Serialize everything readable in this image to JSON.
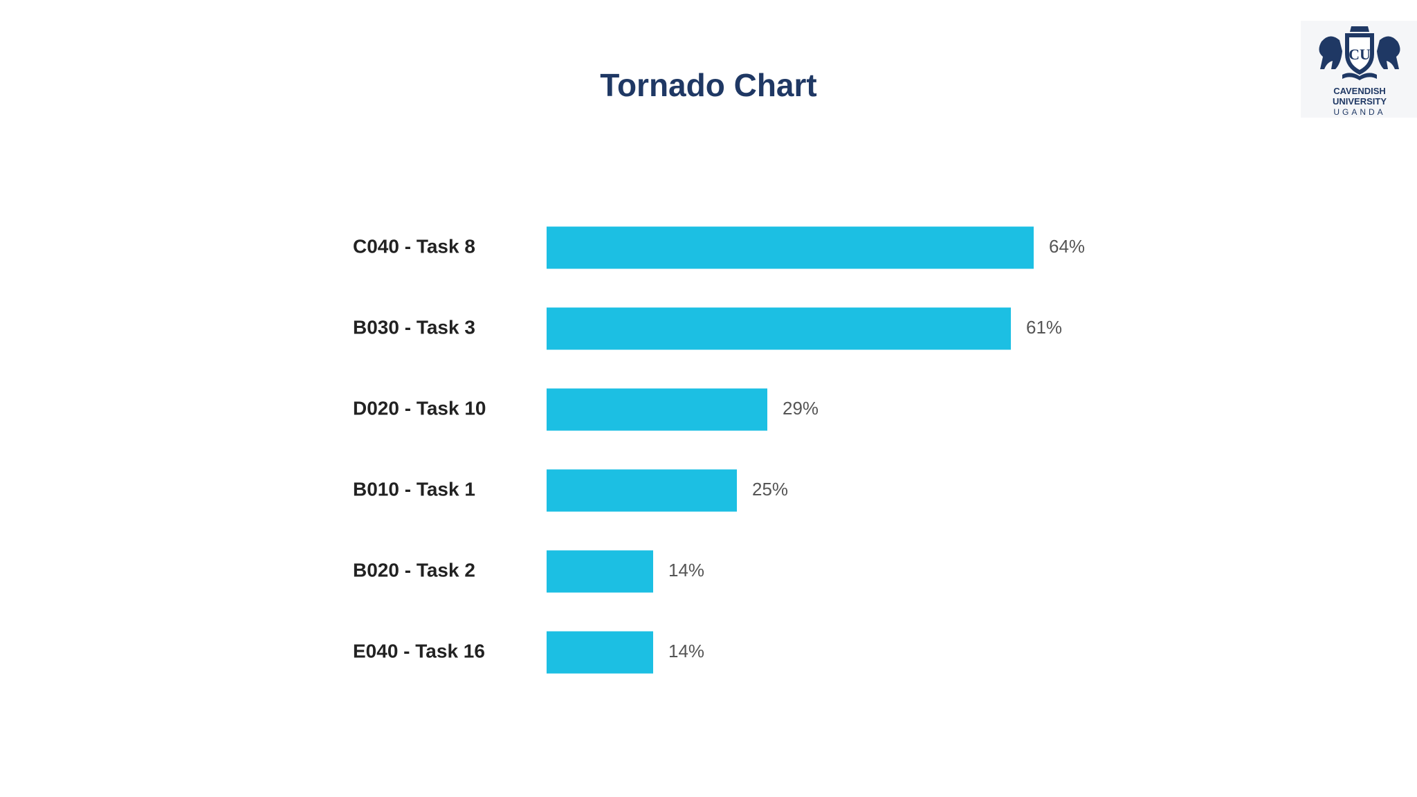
{
  "slide": {
    "title": "Tornado Chart"
  },
  "logo": {
    "line1": "CAVENDISH",
    "line2": "UNIVERSITY",
    "line3": "UGANDA",
    "icon": "university-crest"
  },
  "chart_data": {
    "type": "bar",
    "orientation": "horizontal",
    "categories": [
      "C040 - Task 8",
      "B030 - Task 3",
      "D020 - Task 10",
      "B010 - Task 1",
      "B020 - Task 2",
      "E040 - Task 16"
    ],
    "values": [
      64,
      61,
      29,
      25,
      14,
      14
    ],
    "value_labels": [
      "64%",
      "61%",
      "29%",
      "25%",
      "14%",
      "14%"
    ],
    "unit": "%",
    "bar_color": "#1cbfe3",
    "xlim": [
      0,
      100
    ],
    "grid": false,
    "legend": "none"
  }
}
